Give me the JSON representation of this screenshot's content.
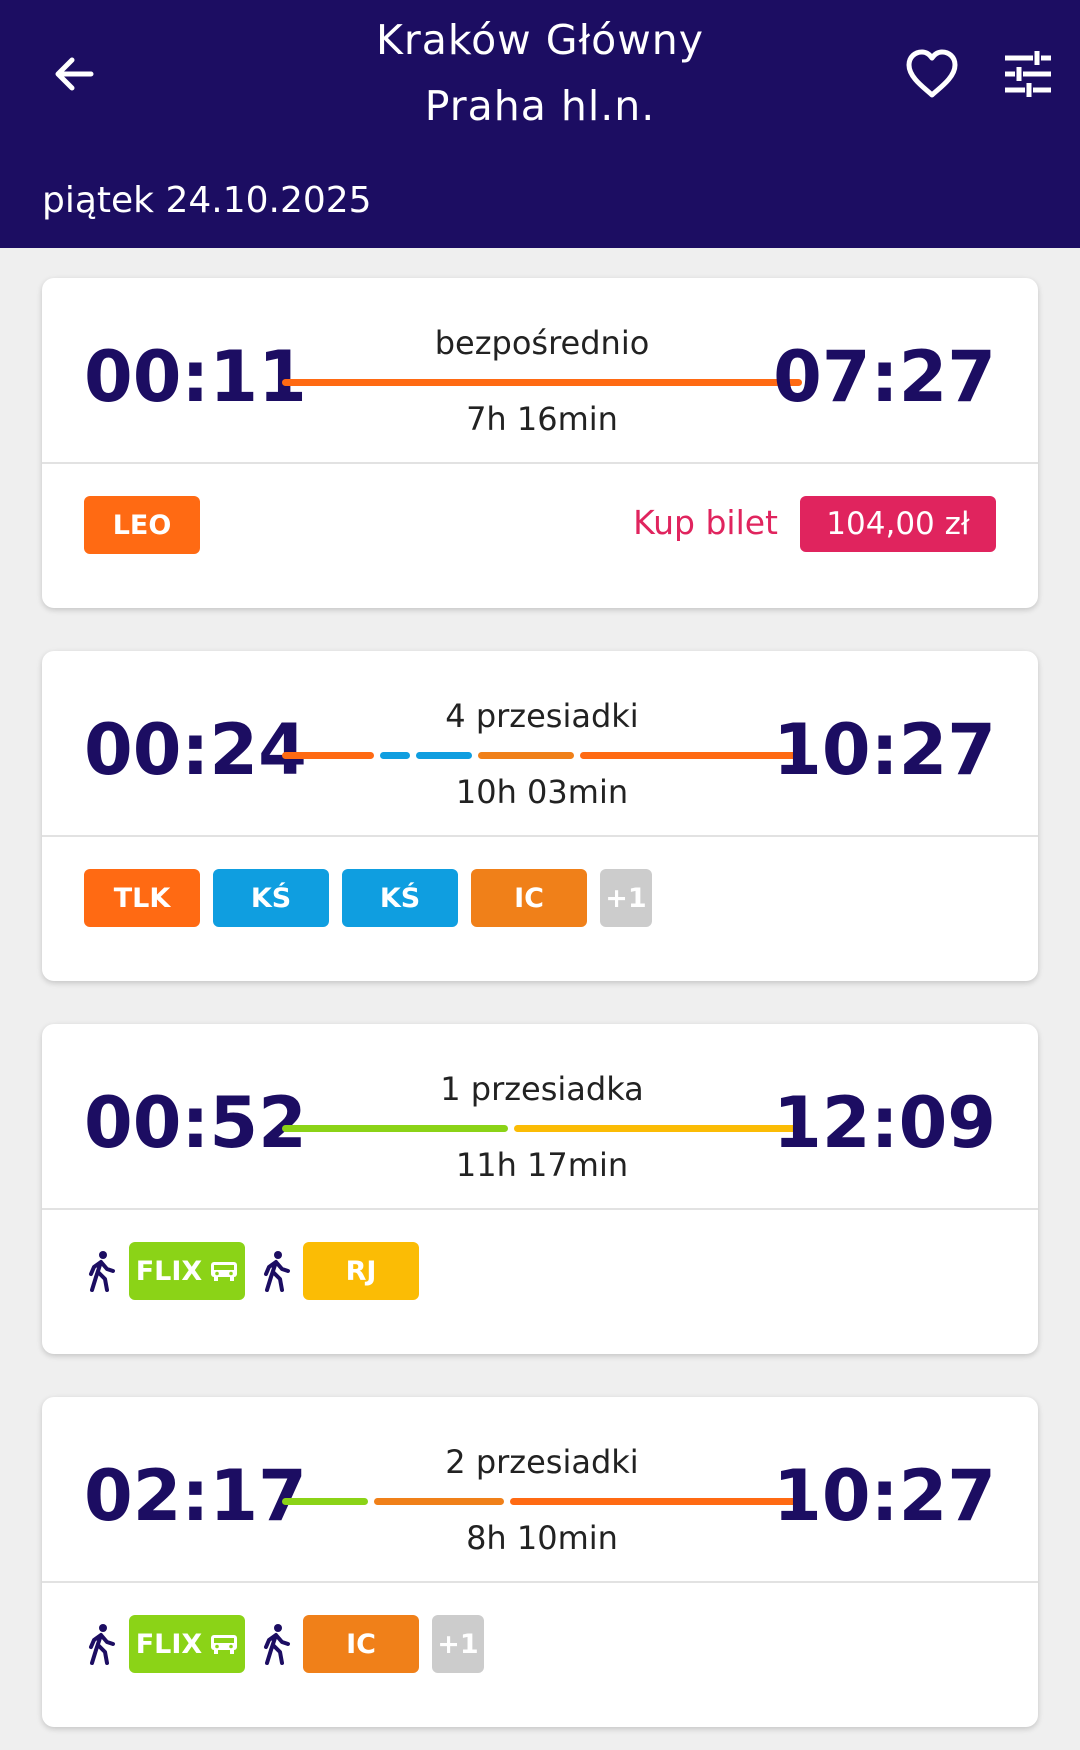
{
  "header": {
    "from_station": "Kraków Główny",
    "to_station": "Praha hl.n.",
    "date": "piątek 24.10.2025",
    "back_icon": "arrow-left-icon",
    "favorite_icon": "heart-outline-icon",
    "filter_icon": "sliders-icon"
  },
  "connections": [
    {
      "departure": "00:11",
      "arrival": "07:27",
      "transfers": "bezpośrednio",
      "duration": "7h 16min",
      "segments": [
        {
          "color": "#ff6a13"
        }
      ],
      "badges": [
        {
          "label": "LEO",
          "color": "#ff6a13"
        }
      ],
      "buy_label": "Kup bilet",
      "price": "104,00 zł"
    },
    {
      "departure": "00:24",
      "arrival": "10:27",
      "transfers": "4 przesiadki",
      "duration": "10h 03min",
      "segments": [
        {
          "color": "#ff6a13"
        },
        {
          "color": "#0f9ee0"
        },
        {
          "color": "#0f9ee0"
        },
        {
          "color": "#f08019"
        },
        {
          "color": "#ff6a13"
        }
      ],
      "badges": [
        {
          "label": "TLK",
          "color": "#ff6a13"
        },
        {
          "label": "KŚ",
          "color": "#0f9ee0"
        },
        {
          "label": "KŚ",
          "color": "#0f9ee0"
        },
        {
          "label": "IC",
          "color": "#f08019"
        },
        {
          "label": "+1",
          "color": "#cccccc"
        }
      ]
    },
    {
      "departure": "00:52",
      "arrival": "12:09",
      "transfers": "1 przesiadka",
      "duration": "11h 17min",
      "segments": [
        {
          "color": "#8bd317"
        },
        {
          "color": "#fbbc05"
        }
      ],
      "badges": [
        {
          "label": "FLIX",
          "color": "#8bd317",
          "icon": "bus-icon"
        },
        {
          "label": "RJ",
          "color": "#fbbc05"
        }
      ]
    },
    {
      "departure": "02:17",
      "arrival": "10:27",
      "transfers": "2 przesiadki",
      "duration": "8h 10min",
      "segments": [
        {
          "color": "#8bd317"
        },
        {
          "color": "#f08019"
        },
        {
          "color": "#ff6a13"
        }
      ],
      "badges": [
        {
          "label": "FLIX",
          "color": "#8bd317",
          "icon": "bus-icon"
        },
        {
          "label": "IC",
          "color": "#f08019"
        },
        {
          "label": "+1",
          "color": "#cccccc"
        }
      ]
    }
  ]
}
